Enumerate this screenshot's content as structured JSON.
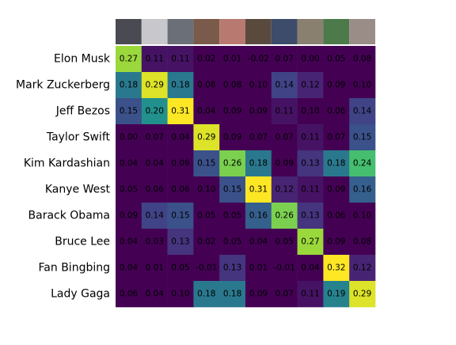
{
  "chart_data": {
    "type": "heatmap",
    "categories": [
      "Elon Musk",
      "Mark Zuckerberg",
      "Jeff Bezos",
      "Taylor Swift",
      "Kim Kardashian",
      "Kanye West",
      "Barack Obama",
      "Bruce Lee",
      "Fan Bingbing",
      "Lady Gaga"
    ],
    "values": [
      [
        0.27,
        0.11,
        0.11,
        0.02,
        0.01,
        -0.02,
        0.07,
        0.0,
        0.05,
        0.08
      ],
      [
        0.18,
        0.29,
        0.18,
        0.08,
        0.08,
        0.1,
        0.14,
        0.12,
        0.09,
        0.1
      ],
      [
        0.15,
        0.2,
        0.31,
        0.04,
        0.09,
        0.09,
        0.11,
        0.1,
        0.06,
        0.14
      ],
      [
        0.0,
        0.07,
        0.04,
        0.29,
        0.09,
        0.07,
        0.07,
        0.11,
        0.07,
        0.15
      ],
      [
        0.04,
        0.04,
        0.09,
        0.15,
        0.26,
        0.18,
        0.09,
        0.13,
        0.18,
        0.24
      ],
      [
        0.05,
        0.06,
        0.06,
        0.1,
        0.15,
        0.31,
        0.12,
        0.11,
        0.09,
        0.16
      ],
      [
        0.09,
        0.14,
        0.15,
        0.05,
        0.05,
        0.16,
        0.26,
        0.13,
        0.06,
        0.1
      ],
      [
        0.04,
        0.03,
        0.13,
        0.02,
        0.05,
        0.04,
        0.05,
        0.27,
        0.09,
        0.08
      ],
      [
        0.04,
        0.01,
        0.05,
        -0.01,
        0.13,
        0.01,
        -0.01,
        0.04,
        0.32,
        0.12
      ],
      [
        0.06,
        0.04,
        0.1,
        0.18,
        0.18,
        0.09,
        0.07,
        0.11,
        0.19,
        0.29
      ]
    ],
    "value_labels": [
      [
        "0.27",
        "0.11",
        "0.11",
        "0.02",
        "0.01",
        "-0.02",
        "0.07",
        "0.00",
        "0.05",
        "0.08"
      ],
      [
        "0.18",
        "0.29",
        "0.18",
        "0.08",
        "0.08",
        "0.10",
        "0.14",
        "0.12",
        "0.09",
        "0.10"
      ],
      [
        "0.15",
        "0.20",
        "0.31",
        "0.04",
        "0.09",
        "0.09",
        "0.11",
        "0.10",
        "0.06",
        "0.14"
      ],
      [
        "0.00",
        "0.07",
        "0.04",
        "0.29",
        "0.09",
        "0.07",
        "0.07",
        "0.11",
        "0.07",
        "0.15"
      ],
      [
        "0.04",
        "0.04",
        "0.09",
        "0.15",
        "0.26",
        "0.18",
        "0.09",
        "0.13",
        "0.18",
        "0.24"
      ],
      [
        "0.05",
        "0.06",
        "0.06",
        "0.10",
        "0.15",
        "0.31",
        "0.12",
        "0.11",
        "0.09",
        "0.16"
      ],
      [
        "0.09",
        "0.14",
        "0.15",
        "0.05",
        "0.05",
        "0.16",
        "0.26",
        "0.13",
        "0.06",
        "0.10"
      ],
      [
        "0.04",
        "0.03",
        "0.13",
        "0.02",
        "0.05",
        "0.04",
        "0.05",
        "0.27",
        "0.09",
        "0.08"
      ],
      [
        "0.04",
        "0.01",
        "0.05",
        "-0.01",
        "0.13",
        "0.01",
        "-0.01",
        "0.04",
        "0.32",
        "0.12"
      ],
      [
        "0.06",
        "0.04",
        "0.10",
        "0.18",
        "0.18",
        "0.09",
        "0.07",
        "0.11",
        "0.19",
        "0.29"
      ]
    ],
    "colormap": "viridis",
    "vlim": [
      0.1,
      0.3
    ]
  }
}
